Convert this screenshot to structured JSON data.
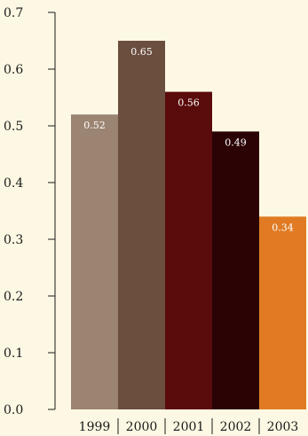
{
  "chart_data": {
    "type": "bar",
    "title": "",
    "xlabel": "",
    "ylabel": "",
    "categories": [
      "1999",
      "2000",
      "2001",
      "2002",
      "2003"
    ],
    "values": [
      0.52,
      0.65,
      0.56,
      0.49,
      0.34
    ],
    "data_labels": [
      "0.52",
      "0.65",
      "0.56",
      "0.49",
      "0.34"
    ],
    "bar_colors": [
      "#9b8471",
      "#6b4e3e",
      "#5a0b0b",
      "#2b0305",
      "#e07b24"
    ],
    "ylim": [
      0,
      0.7
    ],
    "yticks": [
      0,
      0.1,
      0.2,
      0.3,
      0.4,
      0.5,
      0.6,
      0.7
    ],
    "ytick_labels": [
      "0.0",
      "0.1",
      "0.2",
      "0.3",
      "0.4",
      "0.5",
      "0.6",
      "0.7"
    ],
    "grid": false,
    "legend": "none",
    "background_color": "#fdf8e3"
  }
}
